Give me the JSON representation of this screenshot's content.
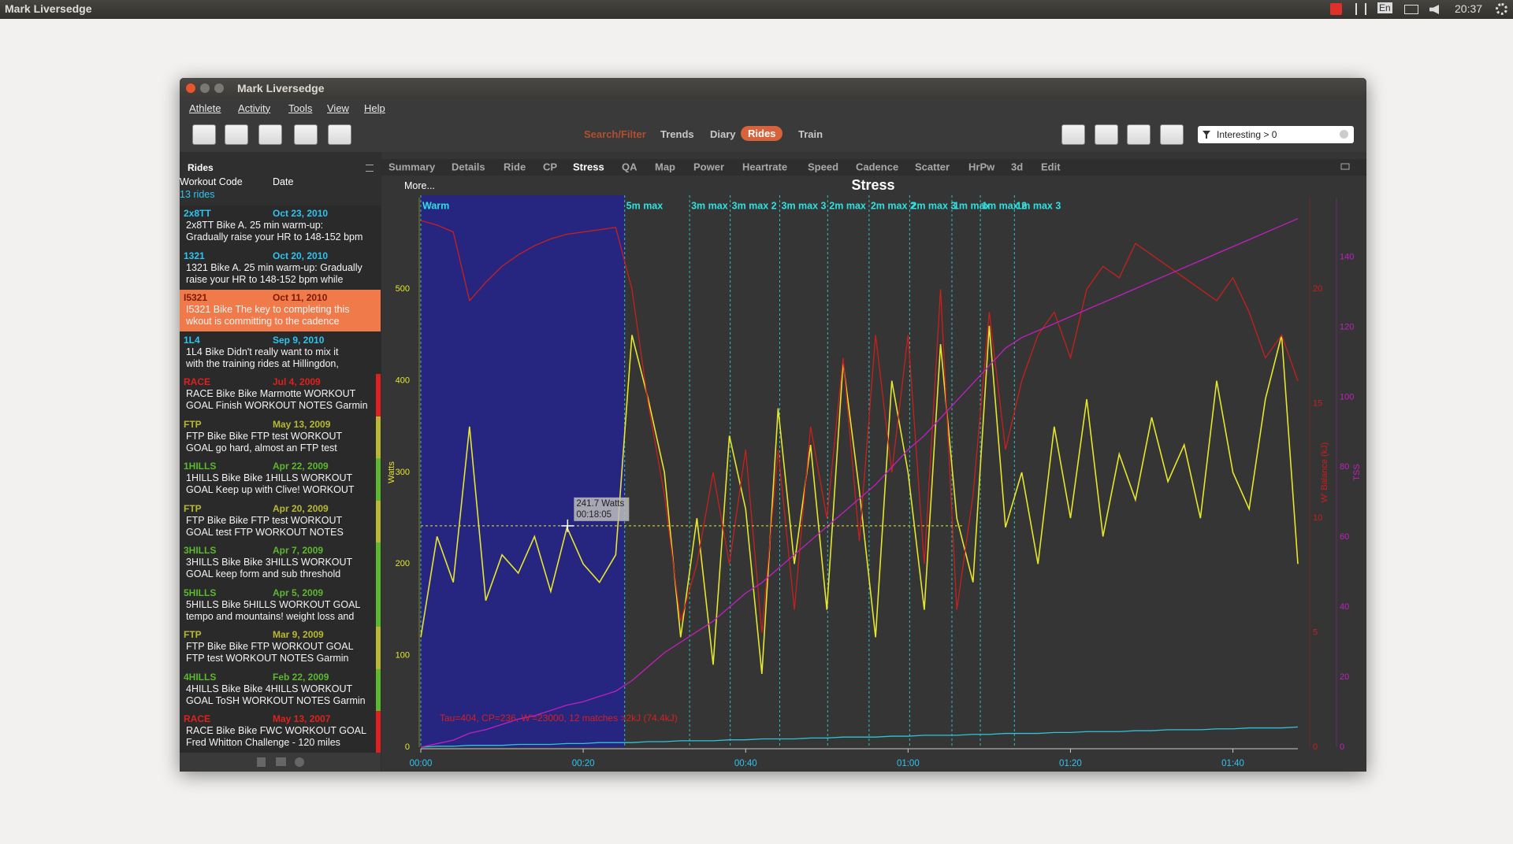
{
  "system_bar": {
    "title": "Mark Liversedge",
    "lang": "En",
    "time": "20:37"
  },
  "window": {
    "title": "Mark Liversedge",
    "menu": [
      "Athlete",
      "Activity",
      "Tools",
      "View",
      "Help"
    ],
    "views": [
      "Search/Filter",
      "Trends",
      "Diary",
      "Rides",
      "Train"
    ],
    "selected_view": 3,
    "filter": "Interesting > 0"
  },
  "sidebar": {
    "title": "Rides",
    "columns": [
      "Workout Code",
      "Date"
    ],
    "count": "13 rides",
    "selected": 2,
    "rides": [
      {
        "code": "2x8TT",
        "date": "Oct 23, 2010",
        "lines": [
          "2x8TT Bike A. 25 min warm-up:",
          "Gradually raise your HR to 148-152 bpm"
        ],
        "color": "#2ec4f0"
      },
      {
        "code": "1321",
        "date": "Oct 20, 2010",
        "lines": [
          "1321 Bike A. 25 min warm-up: Gradually",
          "raise your HR to 148-152 bpm while"
        ],
        "color": "#2ec4f0"
      },
      {
        "code": "I5321",
        "date": "Oct 11, 2010",
        "lines": [
          "I5321 Bike The key to completing this",
          "wkout is committing to the cadence"
        ],
        "color": "#2ec4f0"
      },
      {
        "code": "1L4",
        "date": "Sep 9, 2010",
        "lines": [
          "1L4 Bike Didn't really want to mix it",
          "with the training rides at Hillingdon,"
        ],
        "color": "#2ec4f0"
      },
      {
        "code": "RACE",
        "date": "Jul 4, 2009",
        "lines": [
          "RACE Bike Bike Marmotte WORKOUT",
          "GOAL Finish  WORKOUT NOTES Garmin"
        ],
        "color": "#e0201c",
        "flag_color": "#e0201c"
      },
      {
        "code": "FTP",
        "date": "May 13, 2009",
        "lines": [
          "FTP Bike Bike FTP test WORKOUT",
          "GOAL go hard, almost an FTP test"
        ],
        "color": "#b8b832",
        "flag_color": "#b8b832"
      },
      {
        "code": "1HILLS",
        "date": "Apr 22, 2009",
        "lines": [
          "1HILLS Bike Bike 1HILLS WORKOUT",
          "GOAL Keep up with Clive!  WORKOUT"
        ],
        "color": "#5cb82e",
        "flag_color": "#5cb82e"
      },
      {
        "code": "FTP",
        "date": "Apr 20, 2009",
        "lines": [
          "FTP Bike Bike FTP test WORKOUT",
          "GOAL test FTP  WORKOUT NOTES"
        ],
        "color": "#b8b832",
        "flag_color": "#b8b832"
      },
      {
        "code": "3HILLS",
        "date": "Apr 7, 2009",
        "lines": [
          "3HILLS Bike Bike 3HILLS WORKOUT",
          "GOAL keep form and sub threshold"
        ],
        "color": "#5cb82e",
        "flag_color": "#5cb82e"
      },
      {
        "code": "5HILLS",
        "date": "Apr 5, 2009",
        "lines": [
          "5HILLS Bike 5HILLS WORKOUT GOAL",
          "tempo and mountains! weight loss and"
        ],
        "color": "#5cb82e",
        "flag_color": "#5cb82e"
      },
      {
        "code": "FTP",
        "date": "Mar 9, 2009",
        "lines": [
          "FTP Bike Bike FTP WORKOUT GOAL",
          "FTP test WORKOUT NOTES Garmin"
        ],
        "color": "#b8b832",
        "flag_color": "#b8b832"
      },
      {
        "code": "4HILLS",
        "date": "Feb 22, 2009",
        "lines": [
          "4HILLS Bike Bike 4HILLS WORKOUT",
          "GOAL ToSH WORKOUT NOTES Garmin"
        ],
        "color": "#5cb82e",
        "flag_color": "#5cb82e"
      },
      {
        "code": "RACE",
        "date": "May 13, 2007",
        "lines": [
          "RACE Bike Bike FWC WORKOUT GOAL",
          "Fred Whitton Challenge - 120 miles"
        ],
        "color": "#e0201c",
        "flag_color": "#e0201c"
      }
    ]
  },
  "tabs": {
    "items": [
      "Summary",
      "Details",
      "Ride",
      "CP",
      "Stress",
      "QA",
      "Map",
      "Power",
      "Heartrate",
      "Speed",
      "Cadence",
      "Scatter",
      "HrPw",
      "3d",
      "Edit"
    ],
    "selected": 4
  },
  "more": "More...",
  "chart_data": {
    "type": "line",
    "title": "Stress",
    "x": [
      0,
      2,
      4,
      6,
      8,
      10,
      12,
      14,
      16,
      18,
      20,
      22,
      24,
      26,
      28,
      30,
      32,
      34,
      36,
      38,
      40,
      42,
      44,
      46,
      48,
      50,
      52,
      54,
      56,
      58,
      60,
      62,
      64,
      66,
      68,
      70,
      72,
      74,
      76,
      78,
      80,
      82,
      84,
      86,
      88,
      90,
      92,
      94,
      96,
      98,
      100,
      102,
      104,
      106,
      108
    ],
    "xlim": [
      0,
      108
    ],
    "xticks": [
      {
        "value": 0,
        "label": "00:00"
      },
      {
        "value": 20,
        "label": "00:20"
      },
      {
        "value": 40,
        "label": "00:40"
      },
      {
        "value": 60,
        "label": "01:00"
      },
      {
        "value": 80,
        "label": "01:20"
      },
      {
        "value": 100,
        "label": "01:40"
      }
    ],
    "ylim": [
      0,
      600
    ],
    "yticks": [
      0,
      100,
      200,
      300,
      400,
      500
    ],
    "ylabel": "Watts",
    "y2lim": [
      0,
      24
    ],
    "y2ticks": [
      0,
      5,
      10,
      15,
      20
    ],
    "y2label": "W' Balance (kJ)",
    "y3lim": [
      0,
      157
    ],
    "y3ticks": [
      0,
      20,
      40,
      60,
      80,
      100,
      120,
      140
    ],
    "y3label": "TSS",
    "series": [
      {
        "color": "#e6e62e",
        "axis": "y",
        "values": [
          120,
          230,
          180,
          350,
          160,
          210,
          190,
          230,
          170,
          240,
          200,
          180,
          210,
          450,
          380,
          300,
          120,
          250,
          90,
          340,
          260,
          80,
          370,
          200,
          330,
          150,
          420,
          280,
          120,
          400,
          300,
          150,
          440,
          250,
          180,
          460,
          240,
          300,
          200,
          350,
          250,
          380,
          230,
          320,
          270,
          360,
          290,
          330,
          250,
          400,
          300,
          260,
          380,
          450,
          200
        ]
      },
      {
        "color": "#2ec4d8",
        "axis": "y",
        "values": [
          0,
          1,
          1,
          2,
          2,
          2,
          3,
          3,
          3,
          4,
          4,
          5,
          5,
          5,
          6,
          6,
          7,
          7,
          7,
          8,
          8,
          9,
          9,
          9,
          10,
          10,
          11,
          11,
          11,
          12,
          12,
          13,
          13,
          13,
          14,
          14,
          15,
          15,
          15,
          16,
          16,
          17,
          17,
          17,
          18,
          18,
          19,
          19,
          19,
          20,
          20,
          21,
          21,
          21,
          22
        ]
      },
      {
        "color": "#c8201c",
        "axis": "y2",
        "values": [
          23,
          22.8,
          22.5,
          19.5,
          20.3,
          21,
          21.5,
          21.9,
          22.2,
          22.4,
          22.5,
          22.6,
          22.7,
          20,
          15,
          11,
          5.5,
          8,
          12,
          8,
          13,
          5,
          13,
          6,
          14,
          10,
          17,
          9,
          18,
          12,
          18,
          8,
          20,
          6,
          11,
          19,
          13,
          16,
          18,
          19,
          17,
          20,
          21,
          20.5,
          22,
          21.5,
          21,
          20.5,
          20,
          19.5,
          20.5,
          19,
          17,
          18,
          16
        ]
      },
      {
        "color": "#c020c0",
        "axis": "y3",
        "values": [
          0,
          1,
          2,
          4,
          5,
          6.5,
          8,
          9,
          10.5,
          12,
          13,
          14.5,
          16,
          19,
          23,
          27,
          30,
          33,
          36,
          40,
          44,
          47,
          51,
          55,
          59,
          63,
          67,
          71,
          75,
          80,
          85,
          89,
          94,
          99,
          104,
          109,
          114,
          117,
          119,
          121,
          123,
          125,
          127,
          129,
          131,
          133,
          135,
          137,
          139,
          141,
          143,
          145,
          147,
          149,
          151
        ]
      }
    ],
    "intervals": [
      {
        "name": "Warm",
        "start": 0
      },
      {
        "name": "5m max",
        "start": 25.1
      },
      {
        "name": "3m max",
        "start": 33.1
      },
      {
        "name": "3m max 2",
        "start": 38.1
      },
      {
        "name": "3m max 3",
        "start": 44.2
      },
      {
        "name": "2m max",
        "start": 50.1
      },
      {
        "name": "2m max 2",
        "start": 55.2
      },
      {
        "name": "2m max 3",
        "start": 60.2
      },
      {
        "name": "1m max",
        "start": 65.4
      },
      {
        "name": "1m max 2",
        "start": 68.9
      },
      {
        "name": "1m max 3",
        "start": 73.1
      }
    ],
    "interval_color": "#2ee0e0",
    "shade_color": "#262680",
    "annotation": "Tau=404, CP=236, W'=23000, 12 matches >2kJ (74.4kJ)",
    "crosshair": {
      "x": 18.08,
      "y": 241.7,
      "value_label": "241.7 Watts",
      "x_label": "00:18:05"
    }
  }
}
